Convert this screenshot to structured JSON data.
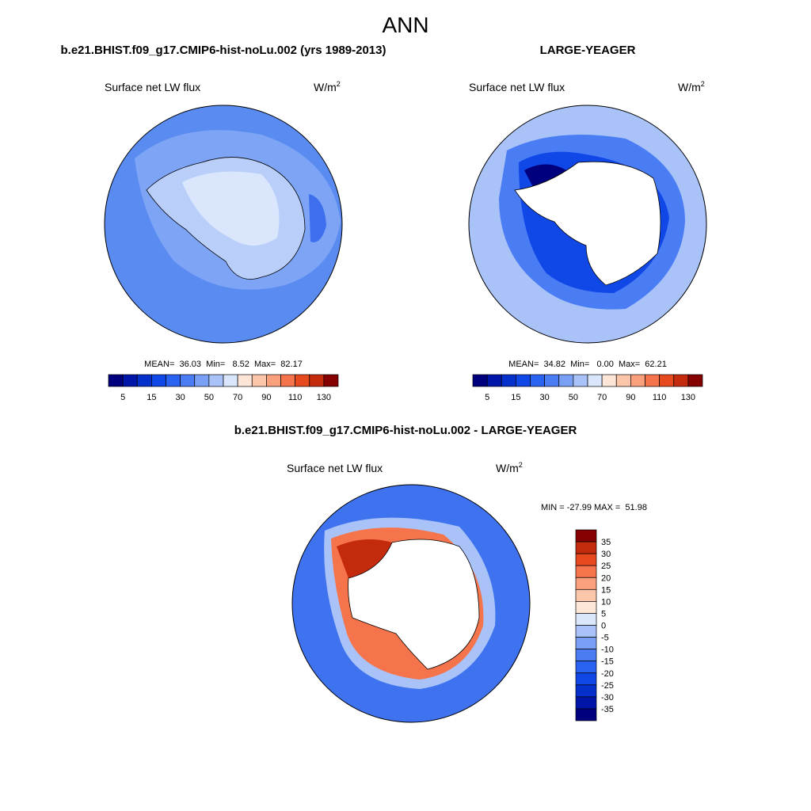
{
  "title": "ANN",
  "panels": [
    {
      "title": "b.e21.BHIST.f09_g17.CMIP6-hist-noLu.002 (yrs 1989-2013)",
      "variable": "Surface net LW flux",
      "units": "W/m",
      "units_exp": "2",
      "stats": "MEAN=  36.03  Min=   8.52  Max=  82.17",
      "colorbar_labels": [
        5,
        15,
        30,
        50,
        70,
        90,
        110,
        130
      ]
    },
    {
      "title": "LARGE-YEAGER",
      "variable": "Surface net LW flux",
      "units": "W/m",
      "units_exp": "2",
      "stats": "MEAN=  34.82  Min=   0.00  Max=  62.21",
      "colorbar_labels": [
        5,
        15,
        30,
        50,
        70,
        90,
        110,
        130
      ]
    }
  ],
  "difference": {
    "title": "b.e21.BHIST.f09_g17.CMIP6-hist-noLu.002 - LARGE-YEAGER",
    "variable": "Surface net LW flux",
    "units": "W/m",
    "units_exp": "2",
    "stats": "MIN = -27.99 MAX =  51.98",
    "colorbar_labels": [
      35,
      30,
      25,
      20,
      15,
      10,
      5,
      0,
      -5,
      -10,
      -15,
      -20,
      -25,
      -30,
      -35
    ]
  },
  "colorbar_colors": [
    "#00007f",
    "#0016a8",
    "#0530cc",
    "#1048e8",
    "#2a62f2",
    "#4a7cf4",
    "#7aa0f6",
    "#a9c3f9",
    "#dae6fc",
    "#fde6d8",
    "#fcc6aa",
    "#fba07d",
    "#f6744b",
    "#e84a20",
    "#c42a0c",
    "#850000"
  ]
}
